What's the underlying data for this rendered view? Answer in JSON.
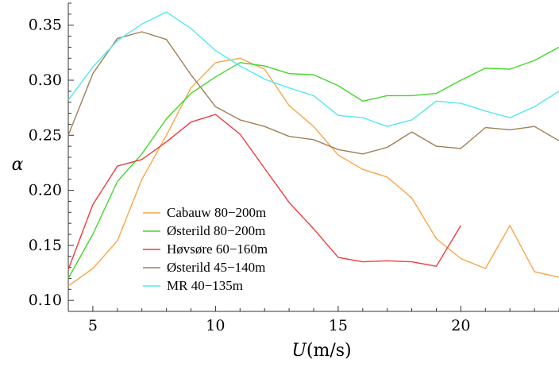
{
  "chart_data": {
    "type": "line",
    "xlabel_var": "U",
    "xlabel_unit": "(m/s)",
    "ylabel": "α",
    "xlim": [
      4,
      24
    ],
    "ylim": [
      0.09,
      0.37
    ],
    "xticks": [
      5,
      10,
      15,
      20
    ],
    "yticks": [
      0.1,
      0.15,
      0.2,
      0.25,
      0.3,
      0.35
    ],
    "ytick_labels": [
      "0.10",
      "0.15",
      "0.20",
      "0.25",
      "0.30",
      "0.35"
    ],
    "legend_position": "bottom-left",
    "grid": false,
    "series": [
      {
        "name": "Cabauw 80−200m",
        "color": "#f7a647",
        "x": [
          4,
          5,
          6,
          7,
          8,
          9,
          10,
          11,
          12,
          13,
          14,
          15,
          16,
          17,
          18,
          19,
          20,
          21,
          22,
          23,
          24
        ],
        "y": [
          0.113,
          0.129,
          0.154,
          0.21,
          0.25,
          0.293,
          0.316,
          0.32,
          0.31,
          0.277,
          0.258,
          0.232,
          0.219,
          0.212,
          0.193,
          0.156,
          0.138,
          0.129,
          0.168,
          0.126,
          0.121
        ]
      },
      {
        "name": "Østerild 80−200m",
        "color": "#44d62c",
        "x": [
          4,
          5,
          6,
          7,
          8,
          9,
          10,
          11,
          12,
          13,
          14,
          15,
          16,
          17,
          18,
          19,
          20,
          21,
          22,
          23,
          24
        ],
        "y": [
          0.12,
          0.16,
          0.208,
          0.233,
          0.265,
          0.288,
          0.303,
          0.316,
          0.313,
          0.306,
          0.305,
          0.295,
          0.281,
          0.286,
          0.286,
          0.288,
          0.3,
          0.311,
          0.31,
          0.318,
          0.33
        ]
      },
      {
        "name": "Høvsøre 60−160m",
        "color": "#ee3b3b",
        "x": [
          4,
          5,
          6,
          7,
          8,
          9,
          10,
          11,
          12,
          13,
          14,
          15,
          16,
          17,
          18,
          19,
          20
        ],
        "y": [
          0.128,
          0.187,
          0.222,
          0.228,
          0.244,
          0.262,
          0.269,
          0.251,
          0.22,
          0.189,
          0.165,
          0.139,
          0.135,
          0.136,
          0.135,
          0.131,
          0.168
        ]
      },
      {
        "name": "Østerild 45−140m",
        "color": "#a07f56",
        "x": [
          4,
          5,
          6,
          7,
          8,
          9,
          10,
          11,
          12,
          13,
          14,
          15,
          16,
          17,
          18,
          19,
          20,
          21,
          22,
          23,
          24
        ],
        "y": [
          0.25,
          0.306,
          0.338,
          0.344,
          0.337,
          0.305,
          0.276,
          0.264,
          0.258,
          0.249,
          0.246,
          0.237,
          0.233,
          0.239,
          0.253,
          0.24,
          0.238,
          0.257,
          0.255,
          0.258,
          0.245
        ]
      },
      {
        "name": "MR 40−135m",
        "color": "#52e8ef",
        "x": [
          4,
          5,
          6,
          7,
          8,
          9,
          10,
          11,
          12,
          13,
          14,
          15,
          16,
          17,
          18,
          19,
          20,
          21,
          22,
          23,
          24
        ],
        "y": [
          0.282,
          0.312,
          0.336,
          0.351,
          0.362,
          0.347,
          0.327,
          0.313,
          0.301,
          0.293,
          0.286,
          0.268,
          0.266,
          0.258,
          0.264,
          0.281,
          0.279,
          0.272,
          0.266,
          0.276,
          0.29
        ]
      }
    ]
  }
}
